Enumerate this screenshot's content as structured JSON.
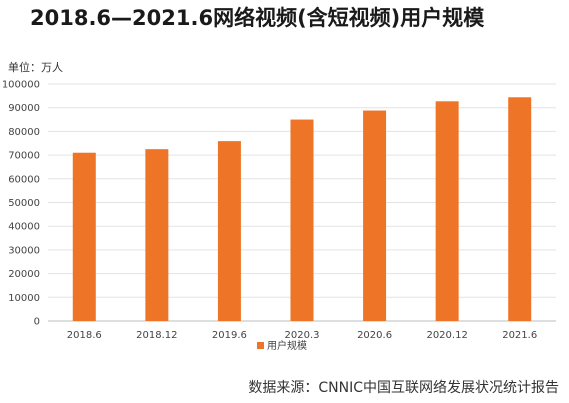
{
  "title": "2018.6—2021.6网络视频(含短视频)用户规模",
  "unit_label": "单位：万人",
  "source": "数据来源：CNNIC中国互联网络发展状况统计报告",
  "colors": {
    "bar": "#ee7527",
    "grid": "#e3e3e3",
    "axis": "#bdbdbd"
  },
  "chart_data": {
    "type": "bar",
    "title": "2018.6—2021.6网络视频(含短视频)用户规模",
    "xlabel": "",
    "ylabel": "单位：万人",
    "categories": [
      "2018.6",
      "2018.12",
      "2019.6",
      "2020.3",
      "2020.6",
      "2020.12",
      "2021.6"
    ],
    "series": [
      {
        "name": "用户规模",
        "values": [
          71000,
          72500,
          75900,
          85000,
          88800,
          92700,
          94400
        ]
      }
    ],
    "ylim": [
      0,
      100000
    ],
    "yticks": [
      0,
      10000,
      20000,
      30000,
      40000,
      50000,
      60000,
      70000,
      80000,
      90000,
      100000
    ],
    "grid": true,
    "legend": "bottom-center"
  }
}
